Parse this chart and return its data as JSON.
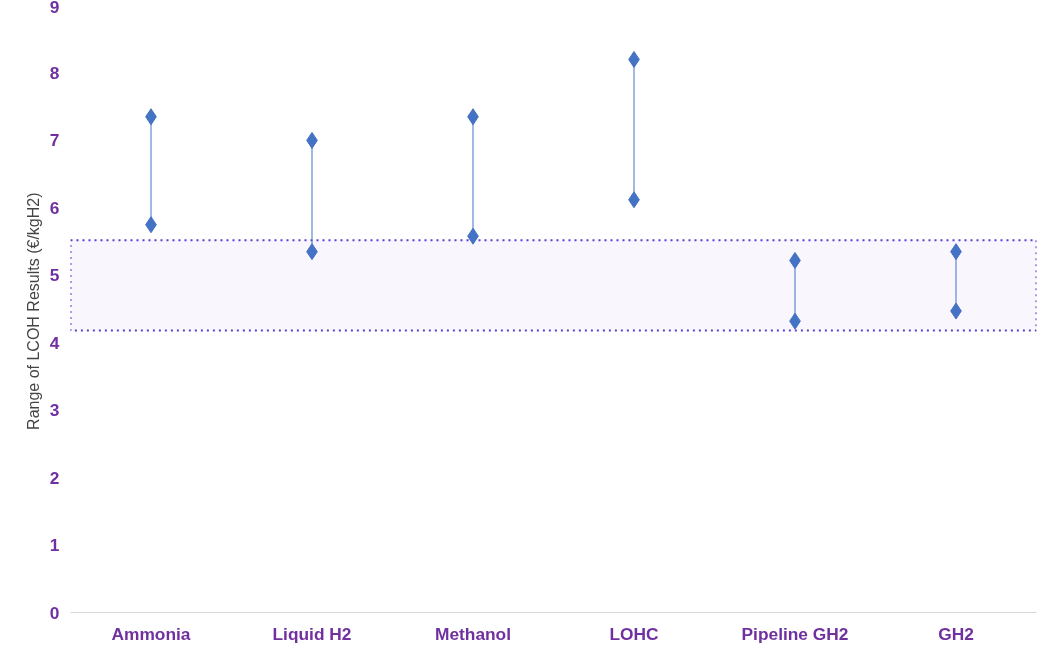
{
  "chart_data": {
    "type": "scatter",
    "ylabel": "Range of LCOH Results  (€/kgH2)",
    "categories": [
      "Ammonia",
      "Liquid H2",
      "Methanol",
      "LOHC",
      "Pipeline GH2",
      "GH2"
    ],
    "series": [
      {
        "color": "#4472c4",
        "values": [
          7.35,
          7.0,
          7.35,
          8.2,
          5.22,
          5.35
        ]
      },
      {
        "color": "#4472c4",
        "values": [
          5.75,
          5.35,
          5.58,
          6.12,
          4.32,
          4.47
        ]
      }
    ],
    "marker": "diamond",
    "ylim": [
      0,
      9
    ],
    "yticks": [
      0,
      1,
      2,
      3,
      4,
      5,
      6,
      7,
      8,
      9
    ],
    "grid": false,
    "bands": [
      {
        "axis": "y",
        "from": 4.18,
        "to": 5.52,
        "color": "#5b3fd6"
      }
    ]
  }
}
